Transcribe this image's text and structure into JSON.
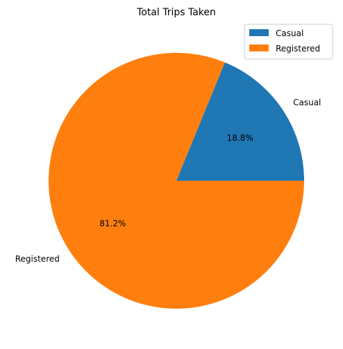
{
  "chart_data": {
    "type": "pie",
    "title": "Total Trips Taken",
    "labels": [
      "Casual",
      "Registered"
    ],
    "values": [
      18.8,
      81.2
    ],
    "percent_labels": [
      "18.8%",
      "81.2%"
    ],
    "colors": [
      "#1f77b4",
      "#ff7f0e"
    ],
    "legend": {
      "placement": "top-right",
      "entries": [
        "Casual",
        "Registered"
      ]
    }
  }
}
